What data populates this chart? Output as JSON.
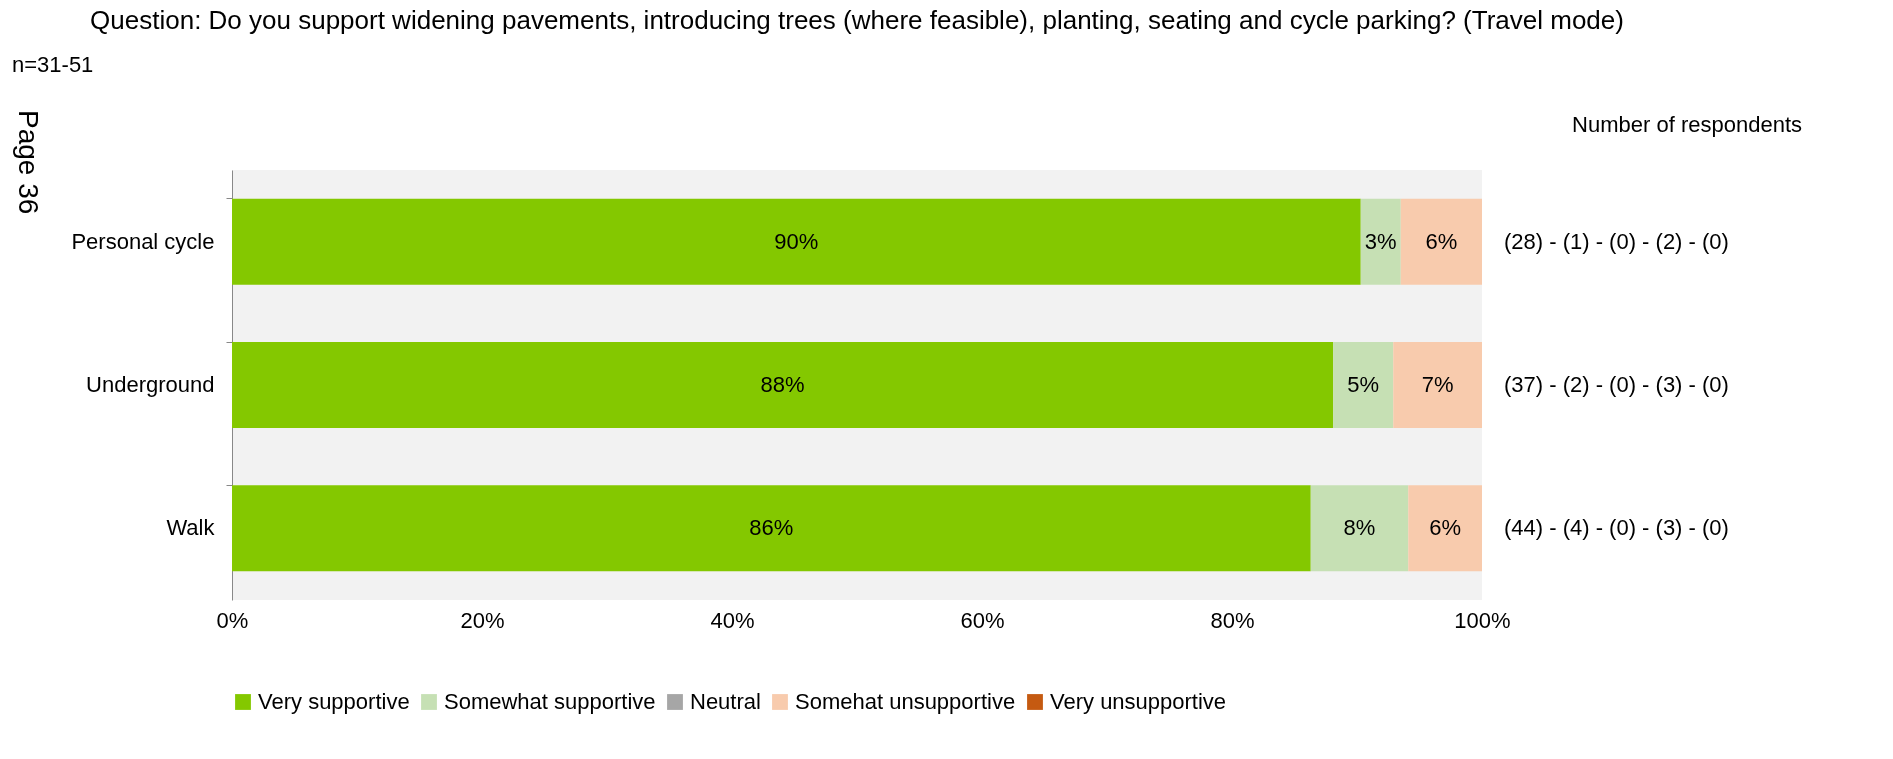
{
  "chart_data": {
    "type": "bar",
    "orientation": "horizontal",
    "stacked": true,
    "title": "Question: Do you support widening pavements, introducing trees (where feasible), planting, seating and cycle parking? (Travel mode)",
    "categories": [
      "Personal cycle",
      "Underground",
      "Walk"
    ],
    "series": [
      {
        "name": "Very supportive",
        "color": "#84c800",
        "values": [
          90.3,
          88.1,
          86.3
        ],
        "value_labels": [
          "90%",
          "88%",
          "86%"
        ]
      },
      {
        "name": "Somewhat supportive",
        "color": "#c6e0b4",
        "values": [
          3.2,
          4.8,
          7.8
        ],
        "value_labels": [
          "3%",
          "5%",
          "8%"
        ]
      },
      {
        "name": "Neutral",
        "color": "#a6a6a6",
        "values": [
          0,
          0,
          0
        ],
        "value_labels": [
          null,
          null,
          null
        ]
      },
      {
        "name": "Somehat unsupportive",
        "color": "#f8cbad",
        "values": [
          6.5,
          7.1,
          5.9
        ],
        "value_labels": [
          "6%",
          "7%",
          "6%"
        ]
      },
      {
        "name": "Very unsupportive",
        "color": "#c55a11",
        "values": [
          0,
          0,
          0
        ],
        "value_labels": [
          null,
          null,
          null
        ]
      }
    ],
    "xlim": [
      0,
      100
    ],
    "xticks": [
      {
        "value": 0,
        "label": "0%"
      },
      {
        "value": 20,
        "label": "20%"
      },
      {
        "value": 40,
        "label": "40%"
      },
      {
        "value": 60,
        "label": "60%"
      },
      {
        "value": 80,
        "label": "80%"
      },
      {
        "value": 100,
        "label": "100%"
      }
    ],
    "grid": false,
    "legend": "bottom",
    "annotations": [
      "n=31-51",
      "Page 36",
      "Number of respondents",
      "(28) - (1) - (0) - (2) - (0)",
      "(37) - (2) - (0) - (3) - (0)",
      "(44) - (4) - (0) - (3) - (0)"
    ]
  }
}
